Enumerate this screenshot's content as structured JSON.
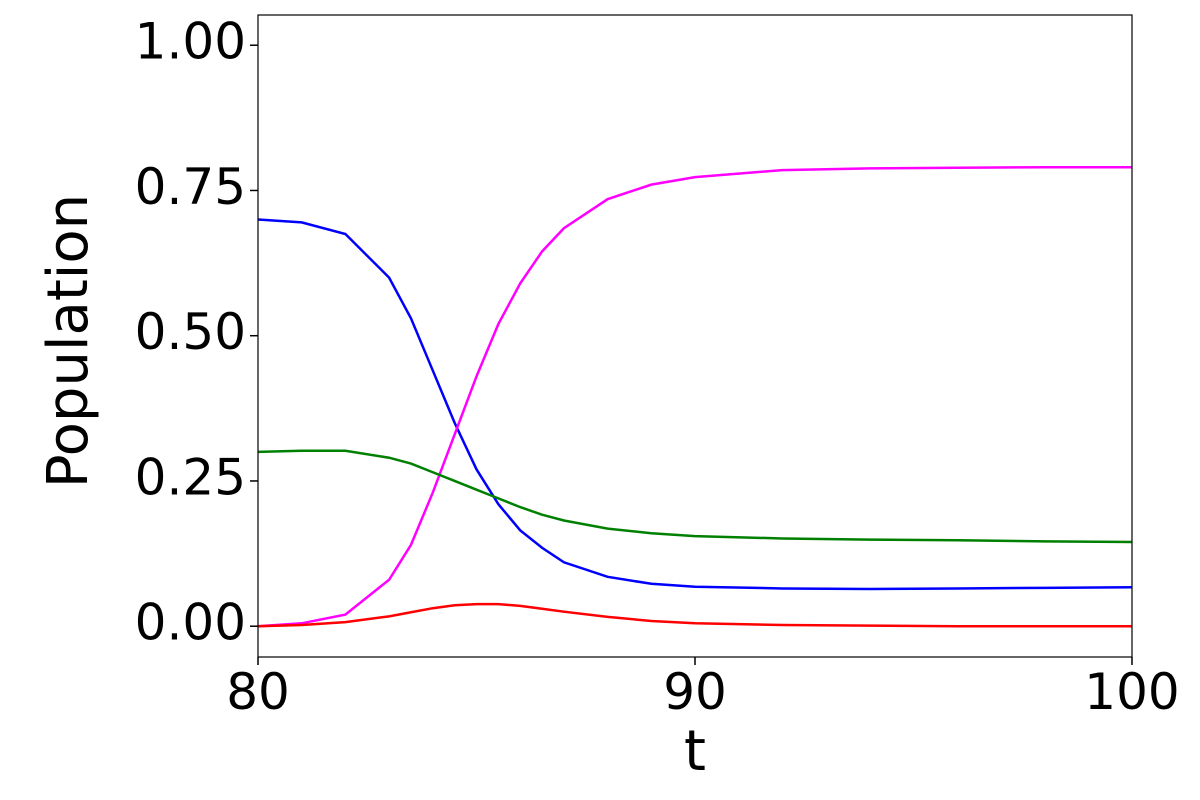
{
  "chart_data": {
    "type": "line",
    "xlabel": "t",
    "ylabel": "Population",
    "x": [
      80,
      81,
      82,
      83,
      83.5,
      84,
      84.5,
      85,
      85.5,
      86,
      86.5,
      87,
      88,
      89,
      90,
      92,
      94,
      96,
      98,
      100
    ],
    "series": [
      {
        "color": "#0000ff",
        "values": [
          0.7,
          0.695,
          0.675,
          0.6,
          0.53,
          0.44,
          0.35,
          0.27,
          0.21,
          0.165,
          0.135,
          0.11,
          0.085,
          0.073,
          0.068,
          0.065,
          0.064,
          0.065,
          0.066,
          0.067
        ]
      },
      {
        "color": "#ff00ff",
        "values": [
          0.0,
          0.005,
          0.02,
          0.08,
          0.14,
          0.23,
          0.33,
          0.43,
          0.52,
          0.59,
          0.645,
          0.685,
          0.735,
          0.76,
          0.773,
          0.785,
          0.788,
          0.789,
          0.79,
          0.79
        ]
      },
      {
        "color": "#008000",
        "values": [
          0.3,
          0.302,
          0.302,
          0.29,
          0.28,
          0.265,
          0.25,
          0.235,
          0.22,
          0.205,
          0.192,
          0.182,
          0.168,
          0.16,
          0.155,
          0.151,
          0.149,
          0.148,
          0.146,
          0.145
        ]
      },
      {
        "color": "#ff0000",
        "values": [
          0.0,
          0.002,
          0.007,
          0.017,
          0.024,
          0.031,
          0.036,
          0.038,
          0.038,
          0.035,
          0.03,
          0.025,
          0.016,
          0.009,
          0.005,
          0.002,
          0.001,
          0.0,
          0.0,
          0.0
        ]
      }
    ],
    "xlim": [
      80,
      100
    ],
    "xticks": [
      80,
      90,
      100
    ],
    "ylim": [
      -0.053,
      1.052
    ],
    "yticks": [
      {
        "value": 0,
        "label": "0.00"
      },
      {
        "value": 0.25,
        "label": "0.25"
      },
      {
        "value": 0.5,
        "label": "0.50"
      },
      {
        "value": 0.75,
        "label": "0.75"
      },
      {
        "value": 1,
        "label": "1.00"
      }
    ],
    "grid": false
  }
}
